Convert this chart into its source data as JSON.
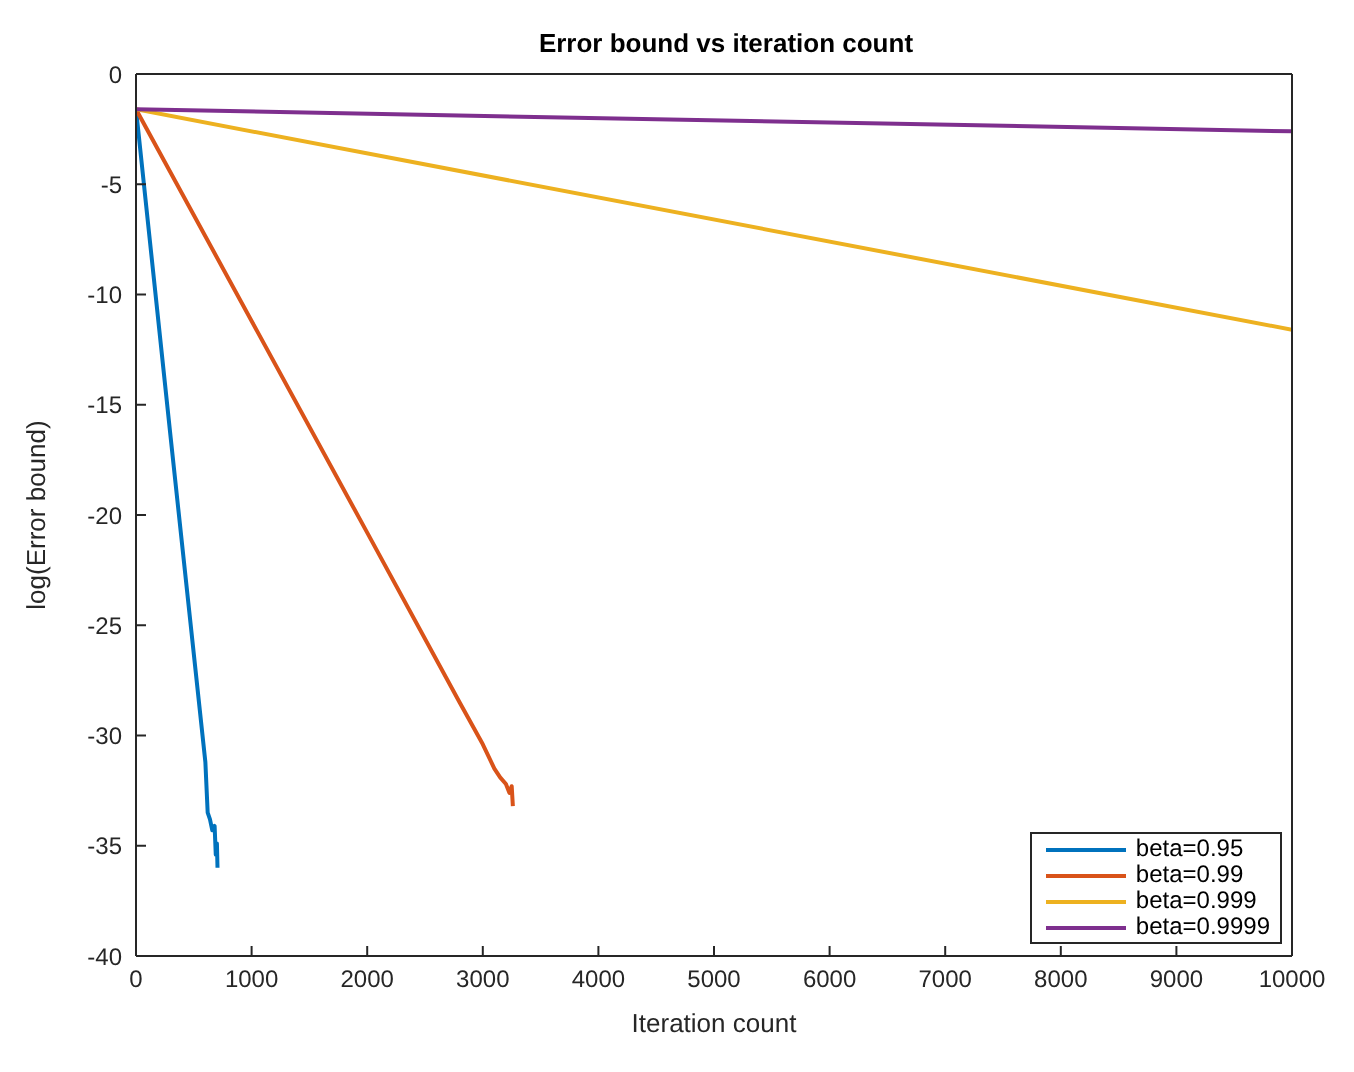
{
  "chart_data": {
    "type": "line",
    "title": "Error bound vs iteration count",
    "xlabel": "Iteration count",
    "ylabel": "log(Error bound)",
    "xlim": [
      0,
      10000
    ],
    "xticks": [
      0,
      1000,
      2000,
      3000,
      4000,
      5000,
      6000,
      7000,
      8000,
      9000,
      10000
    ],
    "ylim": [
      -40,
      0
    ],
    "yticks": [
      -40,
      -35,
      -30,
      -25,
      -20,
      -15,
      -10,
      -5,
      0
    ],
    "legend": "bottom right",
    "marker": "none",
    "line_style": "solid",
    "series": [
      {
        "name": "beta=0.95",
        "color": "#0072bd",
        "x": [
          0,
          300,
          600,
          620,
          640,
          660,
          680,
          690,
          700,
          705
        ],
        "values": [
          -1.6,
          -16.5,
          -31.2,
          -33.5,
          -33.8,
          -34.3,
          -34.1,
          -35.4,
          -34.9,
          -36
        ]
      },
      {
        "name": "beta=0.99",
        "color": "#d95319",
        "x": [
          0,
          1000,
          2000,
          2800,
          3000,
          3100,
          3150,
          3200,
          3230,
          3250,
          3260
        ],
        "values": [
          -1.6,
          -11.2,
          -20.8,
          -28.5,
          -30.4,
          -31.5,
          -31.9,
          -32.2,
          -32.6,
          -32.3,
          -33.2
        ]
      },
      {
        "name": "beta=0.999",
        "color": "#edb120",
        "x": [
          0,
          10000
        ],
        "values": [
          -1.6,
          -11.6
        ]
      },
      {
        "name": "beta=0.9999",
        "color": "#7e2f8e",
        "x": [
          0,
          10000
        ],
        "values": [
          -1.6,
          -2.6
        ]
      }
    ]
  }
}
